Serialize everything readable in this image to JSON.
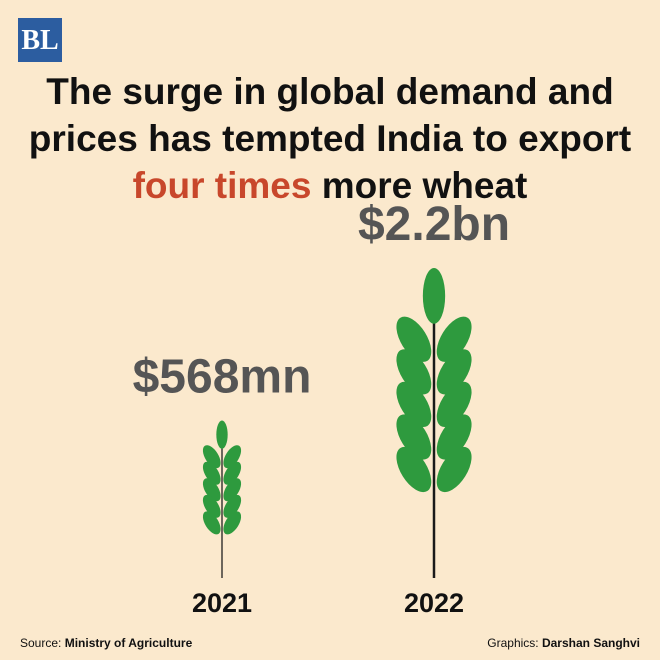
{
  "logo": "BL",
  "chart_data": {
    "type": "pictogram",
    "title": "The surge in global demand and prices has tempted India to export four times more wheat",
    "title_highlight": "four times",
    "categories": [
      "2021",
      "2022"
    ],
    "values": [
      568000000,
      2200000000
    ],
    "value_labels": [
      "$568mn",
      "$2.2bn"
    ],
    "color": "#2e9a3e",
    "highlight_color": "#c8472b"
  },
  "footer": {
    "source_label": "Source:",
    "source": "Ministry of Agriculture",
    "credit_label": "Graphics:",
    "credit": "Darshan Sanghvi"
  }
}
